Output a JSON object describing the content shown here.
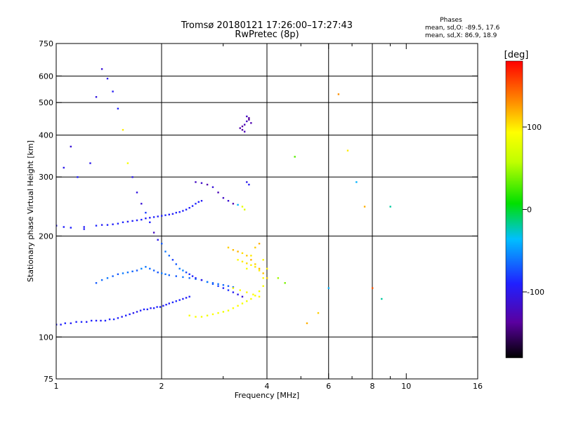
{
  "chart_data": {
    "type": "scatter",
    "title": "Tromsø 20180121 17:26:00–17:27:43",
    "subtitle": "RwPretec (8p)",
    "annotation": {
      "title": "Phases",
      "line1": "mean, sd,O: -89.5, 17.6",
      "line2": "mean, sd,X:  86.9, 18.9"
    },
    "xlabel": "Frequency [MHz]",
    "ylabel": "Stationary phase Virtual Height [km]",
    "xscale": "log",
    "yscale": "log",
    "xlim": [
      1,
      16
    ],
    "ylim": [
      75,
      750
    ],
    "x_ticks": [
      1,
      2,
      4,
      6,
      8,
      10,
      16
    ],
    "x_tick_labels": [
      "1",
      "2",
      "4",
      "6",
      "8",
      "10",
      "16"
    ],
    "x_minor_ticks": [
      3,
      5,
      7,
      9
    ],
    "x_grid": [
      2,
      4,
      6,
      8
    ],
    "y_ticks": [
      75,
      100,
      200,
      300,
      400,
      500,
      600,
      750
    ],
    "y_tick_labels": [
      "75",
      "100",
      "200",
      "300",
      "400",
      "500",
      "600",
      "750"
    ],
    "y_grid": [
      100,
      200,
      300,
      400,
      500,
      600
    ],
    "grid": true,
    "colorbar": {
      "label": "[deg]",
      "range": [
        -180,
        180
      ],
      "ticks": [
        100,
        0,
        -100
      ],
      "tick_labels": [
        "100",
        "0",
        "-100"
      ]
    },
    "series": [
      {
        "x": [
          1.0,
          1.03,
          1.06,
          1.1,
          1.14,
          1.18,
          1.22,
          1.26,
          1.3,
          1.34,
          1.38,
          1.42,
          1.46,
          1.5,
          1.54,
          1.58,
          1.62,
          1.66,
          1.7,
          1.74,
          1.78,
          1.82,
          1.86,
          1.9,
          1.94,
          1.98,
          2.02,
          2.06,
          2.1,
          2.15,
          2.2,
          2.25,
          2.3,
          2.35,
          2.4
        ],
        "y": [
          109,
          109,
          110,
          110,
          111,
          111,
          111,
          112,
          112,
          112,
          112,
          113,
          113,
          114,
          115,
          116,
          117,
          118,
          119,
          120,
          121,
          121,
          122,
          122,
          123,
          123,
          124,
          125,
          126,
          127,
          128,
          129,
          130,
          131,
          132
        ],
        "phase": [
          -90,
          -92,
          -88,
          -95,
          -90,
          -87,
          -93,
          -89,
          -91,
          -94,
          -88,
          -90,
          -86,
          -92,
          -95,
          -89,
          -90,
          -100,
          -96,
          -92,
          -90,
          -88,
          -95,
          -91,
          -89,
          -87,
          -93,
          -90,
          -94,
          -88,
          -86,
          -90,
          -92,
          -95,
          -89
        ]
      },
      {
        "x": [
          1.0,
          1.05,
          1.1,
          1.2,
          1.3,
          1.35,
          1.4,
          1.45,
          1.5,
          1.55,
          1.6,
          1.65,
          1.7,
          1.75,
          1.8,
          1.85,
          1.9,
          1.95,
          2.0,
          2.05,
          2.1,
          2.15,
          2.2,
          2.25,
          2.3,
          2.35,
          2.4,
          2.45,
          2.5,
          2.55,
          2.6
        ],
        "y": [
          215,
          213,
          212,
          213,
          215,
          216,
          216,
          217,
          218,
          220,
          221,
          222,
          223,
          224,
          226,
          227,
          228,
          229,
          230,
          231,
          232,
          233,
          235,
          236,
          238,
          240,
          243,
          246,
          250,
          253,
          255
        ],
        "phase": [
          -95,
          -92,
          -90,
          -93,
          -88,
          -95,
          -90,
          -92,
          -89,
          -87,
          -94,
          -91,
          -90,
          -88,
          -93,
          -95,
          -89,
          -92,
          -90,
          -87,
          -91,
          -94,
          -88,
          -90,
          -92,
          -89,
          -93,
          -90,
          -88,
          -91,
          -95
        ]
      },
      {
        "x": [
          1.3,
          1.35,
          1.4,
          1.45,
          1.5,
          1.55,
          1.6,
          1.65,
          1.7,
          1.75,
          1.8,
          1.85,
          1.9,
          1.95,
          2.0,
          2.05,
          2.1,
          2.2,
          2.3,
          2.4,
          2.5,
          2.6,
          2.7,
          2.8,
          2.9,
          3.0,
          3.1,
          3.2
        ],
        "y": [
          145,
          148,
          150,
          152,
          154,
          155,
          156,
          157,
          158,
          160,
          162,
          160,
          158,
          156,
          155,
          154,
          153,
          152,
          151,
          150,
          149,
          148,
          146,
          145,
          144,
          143,
          142,
          141
        ],
        "phase": [
          -70,
          -65,
          -60,
          -68,
          -72,
          -58,
          -62,
          -66,
          -70,
          -55,
          -60,
          -64,
          -68,
          -72,
          -58,
          -62,
          -66,
          -70,
          -60,
          -64,
          -56,
          -62,
          -58,
          -66,
          -60,
          -64,
          -70,
          -68
        ]
      },
      {
        "x": [
          2.4,
          2.5,
          2.6,
          2.7,
          2.8,
          2.9,
          3.0,
          3.1,
          3.2,
          3.3,
          3.4,
          3.5,
          3.6,
          3.7,
          3.8,
          3.9
        ],
        "y": [
          116,
          115,
          115,
          116,
          117,
          118,
          119,
          120,
          122,
          124,
          126,
          128,
          130,
          133,
          137,
          142
        ],
        "phase": [
          90,
          92,
          88,
          86,
          94,
          90,
          85,
          88,
          92,
          95,
          89,
          87,
          91,
          93,
          88,
          90
        ]
      },
      {
        "x": [
          3.1,
          3.2,
          3.3,
          3.4,
          3.5,
          3.6,
          3.7,
          3.8,
          3.9,
          4.0,
          3.3,
          3.4,
          3.5,
          3.6,
          3.7,
          3.8,
          3.9,
          3.2,
          3.35,
          3.5,
          3.65,
          3.8
        ],
        "y": [
          185,
          182,
          180,
          178,
          175,
          170,
          165,
          160,
          155,
          150,
          170,
          168,
          166,
          164,
          162,
          158,
          150,
          140,
          138,
          136,
          134,
          132
        ],
        "phase": [
          110,
          115,
          118,
          105,
          112,
          120,
          108,
          116,
          114,
          110,
          95,
          100,
          105,
          98,
          102,
          100,
          96,
          90,
          94,
          98,
          92,
          96
        ]
      },
      {
        "x": [
          2.5,
          2.6,
          2.7,
          2.8,
          2.9,
          3.0,
          3.1,
          3.2,
          3.3,
          3.4,
          3.45,
          3.5,
          3.55
        ],
        "y": [
          290,
          288,
          285,
          280,
          270,
          260,
          255,
          250,
          248,
          245,
          240,
          290,
          285
        ],
        "phase": [
          -120,
          -115,
          -130,
          -110,
          -125,
          -118,
          -112,
          -128,
          -40,
          80,
          75,
          -100,
          -95
        ]
      },
      {
        "x": [
          3.35,
          3.4,
          3.45,
          3.5,
          3.55,
          3.6,
          3.4,
          3.5,
          3.55,
          3.45
        ],
        "y": [
          420,
          425,
          430,
          440,
          445,
          435,
          415,
          455,
          450,
          410
        ],
        "phase": [
          -130,
          -135,
          -125,
          -120,
          -140,
          -128,
          -132,
          -118,
          -138,
          -126
        ]
      },
      {
        "x": [
          1.05,
          1.1,
          1.15,
          1.2,
          1.25,
          1.3,
          1.35,
          1.4,
          1.45,
          1.5,
          1.55,
          1.6,
          1.65,
          1.7,
          1.75,
          1.8,
          1.85,
          1.9,
          1.95,
          2.0,
          2.05,
          2.1,
          2.15,
          2.2,
          2.25,
          2.3,
          2.35,
          2.4,
          2.45,
          2.5,
          2.6,
          2.7,
          2.8,
          2.9,
          3.0,
          3.1,
          3.2,
          3.3,
          3.4,
          3.5,
          3.6,
          3.7,
          3.8,
          3.9,
          4.0,
          4.3,
          4.5,
          4.8,
          5.2,
          5.6,
          6.0,
          6.4,
          6.8,
          7.2,
          7.6,
          8.0,
          8.5,
          9.0
        ],
        "y": [
          320,
          370,
          300,
          210,
          330,
          520,
          630,
          590,
          540,
          480,
          415,
          330,
          300,
          270,
          250,
          235,
          220,
          205,
          195,
          190,
          180,
          175,
          170,
          165,
          160,
          158,
          156,
          154,
          152,
          150,
          148,
          146,
          144,
          142,
          140,
          138,
          136,
          134,
          132,
          160,
          175,
          185,
          190,
          170,
          160,
          150,
          145,
          345,
          110,
          118,
          140,
          530,
          360,
          290,
          245,
          140,
          130,
          245
        ],
        "phase": [
          -100,
          -110,
          -90,
          -95,
          -100,
          -105,
          -110,
          -100,
          -95,
          -90,
          100,
          90,
          -100,
          -105,
          -110,
          -80,
          -90,
          -120,
          -100,
          -70,
          -60,
          -65,
          -80,
          -70,
          -60,
          -55,
          -75,
          -85,
          -90,
          -95,
          -100,
          -60,
          -70,
          -80,
          -90,
          -85,
          -95,
          -100,
          -110,
          90,
          100,
          110,
          120,
          95,
          100,
          50,
          40,
          30,
          120,
          110,
          -40,
          130,
          100,
          -40,
          120,
          150,
          -20,
          -20
        ]
      }
    ]
  }
}
